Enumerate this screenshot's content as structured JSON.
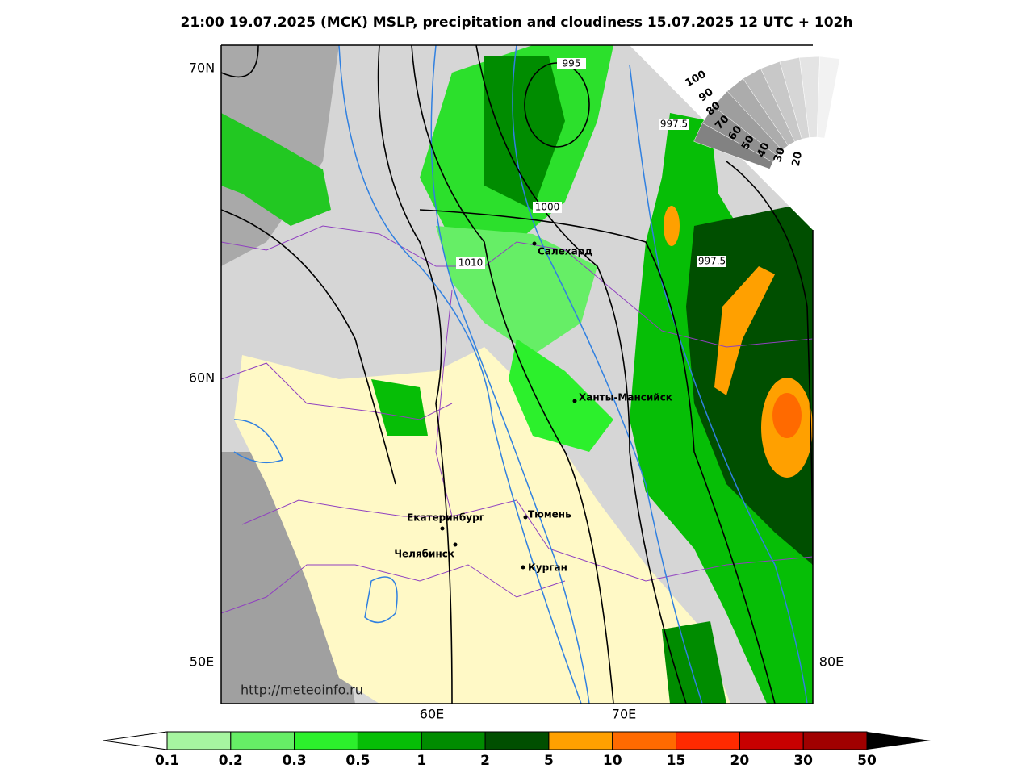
{
  "title": "21:00 19.07.2025 (МСК) MSLP, precipitation and cloudiness 15.07.2025 12 UTC + 102h",
  "axis_labels": [
    "70N",
    "60N",
    "50E",
    "80E",
    "60E",
    "70E"
  ],
  "isobar_labels": [
    "995",
    "997.5",
    "1000",
    "1010",
    "997.5"
  ],
  "cities": [
    "Салехард",
    "Ханты-Мансийск",
    "Екатеринбург",
    "Тюмень",
    "Челябинск",
    "Курган"
  ],
  "cloudiness_scale": [
    "100",
    "90",
    "80",
    "70",
    "60",
    "50",
    "40",
    "30",
    "20"
  ],
  "watermark": "http://meteoinfo.ru",
  "precipitation_scale": {
    "labels": [
      "0.1",
      "0.2",
      "0.3",
      "0.5",
      "1",
      "2",
      "5",
      "10",
      "15",
      "20",
      "30",
      "50"
    ],
    "colors": [
      "#a6f5a0",
      "#66ee66",
      "#2cf02c",
      "#06be06",
      "#008c00",
      "#004f00",
      "#ffa000",
      "#ff6a00",
      "#ff2a00",
      "#c80000",
      "#a00000"
    ]
  }
}
